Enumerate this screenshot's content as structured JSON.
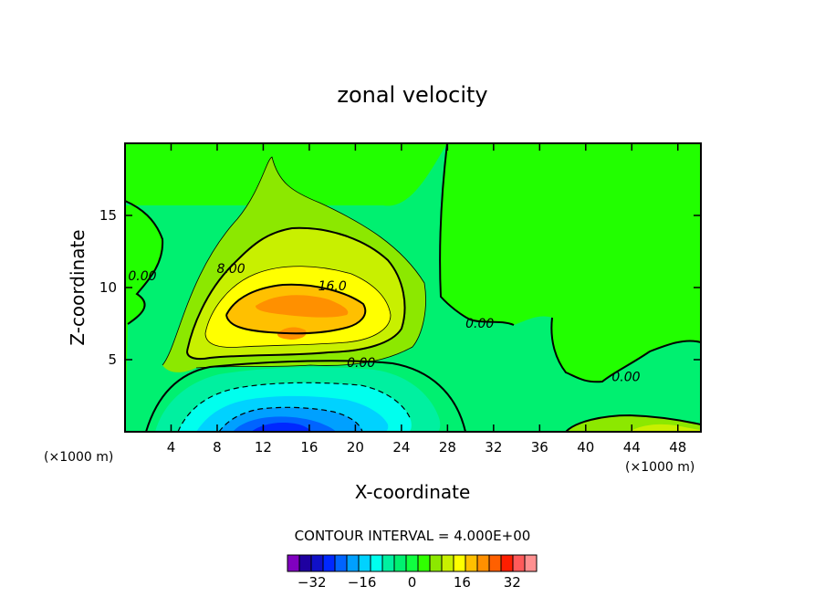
{
  "chart_data": {
    "type": "heatmap",
    "title": "zonal velocity",
    "xlabel": "X-coordinate",
    "ylabel": "Z-coordinate",
    "x_unit": "(×1000 m)",
    "x_unit_right": "(×1000 m)",
    "xlim": [
      0,
      50
    ],
    "ylim": [
      0,
      20
    ],
    "x_ticks": [
      4,
      8,
      12,
      16,
      20,
      24,
      28,
      32,
      36,
      40,
      44,
      48
    ],
    "y_ticks": [
      5,
      10,
      15
    ],
    "contour_labels": [
      {
        "text": "0.00",
        "x": 1.5,
        "y": 10.5
      },
      {
        "text": "8.00",
        "x": 9.2,
        "y": 11.0
      },
      {
        "text": "16.0",
        "x": 18.0,
        "y": 9.8
      },
      {
        "text": "0.00",
        "x": 30.8,
        "y": 7.2
      },
      {
        "text": "0.00",
        "x": 20.5,
        "y": 4.5
      },
      {
        "text": "0.00",
        "x": 43.5,
        "y": 3.5
      }
    ],
    "contour_interval_text": "CONTOUR INTERVAL = 4.000E+00",
    "colorbar": {
      "levels": [
        -36,
        -32,
        -28,
        -24,
        -20,
        -16,
        -12,
        -8,
        -4,
        0,
        4,
        8,
        12,
        16,
        20,
        24,
        28,
        32,
        36
      ],
      "colors": [
        "#8000c0",
        "#1e00a0",
        "#1010c8",
        "#0028ff",
        "#0064ff",
        "#00a0ff",
        "#00d2ff",
        "#00ffee",
        "#00f0a0",
        "#00f070",
        "#10ff40",
        "#30ff00",
        "#8ce800",
        "#c8f000",
        "#ffff00",
        "#ffc000",
        "#ff9000",
        "#ff6000",
        "#ff1e00",
        "#ff5a5a",
        "#ff9090"
      ],
      "tick_labels": [
        "-32",
        "-16",
        "0",
        "16",
        "32"
      ],
      "tick_values": [
        -32,
        -16,
        0,
        16,
        32
      ]
    },
    "colors": {
      "background_field": "#22ff00",
      "zero_band": "#00f070",
      "positive_4": "#8ce800",
      "positive_8": "#c8f000",
      "positive_12": "#ffff00",
      "positive_16": "#ffc000",
      "positive_20": "#ff9000",
      "negative_4": "#00f0a0",
      "negative_8": "#00ffee",
      "negative_12": "#00d2ff",
      "negative_16": "#00a0ff",
      "negative_20": "#0064ff",
      "negative_24": "#0028ff"
    }
  }
}
